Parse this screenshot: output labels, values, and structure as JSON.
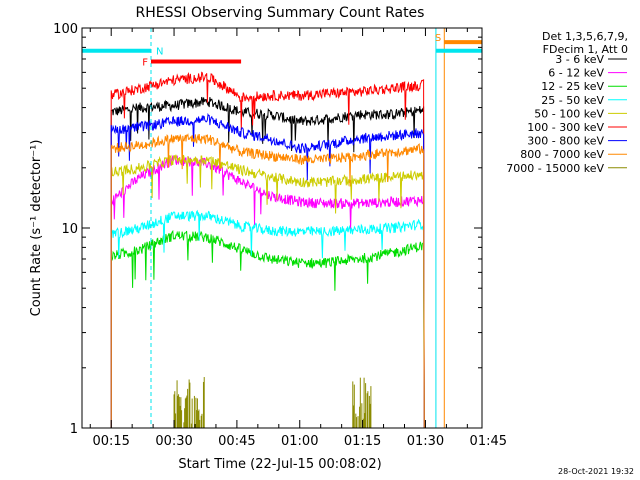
{
  "chart_data": {
    "type": "line",
    "title": "RHESSI Observing Summary Count Rates",
    "xlabel": "Start Time (22-Jul-15 00:08:02)",
    "ylabel": "Count Rate (s⁻¹ detector⁻¹)",
    "y_scale": "log",
    "ylim": [
      1,
      100
    ],
    "xlim_minutes": [
      8.03,
      103.5
    ],
    "x_tick_labels": [
      "00:15",
      "00:30",
      "00:45",
      "01:00",
      "01:15",
      "01:30",
      "01:45"
    ],
    "x_tick_minutes": [
      15,
      30,
      45,
      60,
      75,
      90,
      105
    ],
    "y_tick_labels": [
      "1",
      "10",
      "100"
    ],
    "y_tick_values": [
      1,
      10,
      100
    ],
    "legend_header": [
      "Det 1,3,5,6,7,9,",
      "FDecim 1, Att 0"
    ],
    "timestamp": "28-Oct-2021 19:32",
    "data_start_minutes": 15,
    "data_end_minutes": 89.7,
    "series": [
      {
        "name": "3 - 6 keV",
        "color": "#000000",
        "x": [
          15,
          22,
          30,
          38,
          46,
          53,
          60,
          66,
          74,
          82,
          89.7
        ],
        "values": [
          38,
          40,
          41,
          43,
          38,
          37,
          34,
          35,
          37,
          37,
          39
        ]
      },
      {
        "name": "6 - 12 keV",
        "color": "#ff00ff",
        "x": [
          15,
          22,
          30,
          38,
          46,
          53,
          60,
          66,
          74,
          82,
          89.7
        ],
        "values": [
          13.5,
          18,
          22,
          21,
          17,
          14.5,
          13.5,
          13.3,
          13.3,
          13.5,
          13.8
        ]
      },
      {
        "name": "12 - 25 keV",
        "color": "#00dd00",
        "x": [
          15,
          22,
          30,
          38,
          46,
          53,
          60,
          66,
          74,
          82,
          89.7
        ],
        "values": [
          7.2,
          7.8,
          9.2,
          9,
          7.8,
          7,
          6.7,
          6.7,
          7,
          7.5,
          8.2
        ]
      },
      {
        "name": "25 - 50 keV",
        "color": "#00ffff",
        "x": [
          15,
          22,
          30,
          38,
          46,
          53,
          60,
          66,
          74,
          82,
          89.7
        ],
        "values": [
          9.3,
          10,
          11.5,
          11.5,
          10.2,
          9.7,
          9.6,
          9.6,
          9.8,
          10,
          10.5
        ]
      },
      {
        "name": "50 - 100 keV",
        "color": "#cccc00",
        "x": [
          15,
          22,
          30,
          38,
          46,
          53,
          60,
          66,
          74,
          82,
          89.7
        ],
        "values": [
          19,
          20,
          22,
          22,
          19.5,
          18,
          17,
          17,
          17.5,
          18,
          18.5
        ]
      },
      {
        "name": "100 - 300 keV",
        "color": "#ff0000",
        "x": [
          15,
          22,
          30,
          38,
          46,
          53,
          60,
          66,
          74,
          82,
          89.7
        ],
        "values": [
          46,
          50,
          55,
          57,
          45,
          46,
          46,
          47,
          48,
          50,
          52
        ]
      },
      {
        "name": "300 - 800 keV",
        "color": "#0000ff",
        "x": [
          15,
          22,
          30,
          38,
          46,
          53,
          60,
          66,
          74,
          82,
          89.7
        ],
        "values": [
          31,
          32,
          34,
          35,
          30,
          28,
          25,
          26,
          28,
          29,
          30
        ]
      },
      {
        "name": "800 - 7000 keV",
        "color": "#ff8800",
        "x": [
          15,
          22,
          30,
          38,
          46,
          53,
          60,
          66,
          74,
          82,
          89.7
        ],
        "values": [
          25,
          26,
          28,
          28,
          24,
          23,
          22,
          22,
          23,
          24,
          25
        ]
      },
      {
        "name": "7000 - 15000 keV",
        "color": "#8b8b00",
        "x": [
          30,
          31,
          33,
          35,
          37,
          73,
          74,
          75,
          77
        ],
        "values": [
          1.6,
          1.3,
          1.8,
          1.2,
          1.6,
          1.5,
          1.8,
          1.3,
          1.6
        ]
      }
    ],
    "annotations": [
      {
        "text": "N",
        "color": "#00e5ee",
        "kind": "night",
        "x_minutes": [
          8.03,
          24.5
        ],
        "y": 77
      },
      {
        "text": "F",
        "color": "#ff0000",
        "kind": "flare",
        "x_minutes": [
          24.5,
          46
        ],
        "y": 68
      },
      {
        "text": "S",
        "color": "#ff8800",
        "kind": "saa",
        "x_minutes": [
          94.5,
          103.5
        ],
        "y": 85
      },
      {
        "text": "",
        "color": "#00e5ee",
        "kind": "night",
        "x_minutes": [
          92.5,
          103.5
        ],
        "y": 77
      }
    ],
    "vertical_markers": [
      {
        "x_minutes": 8.03,
        "color": "#00e5ee",
        "style": "solid"
      },
      {
        "x_minutes": 24.5,
        "color": "#00e5ee",
        "style": "dashed"
      },
      {
        "x_minutes": 92.5,
        "color": "#00e5ee",
        "style": "solid"
      },
      {
        "x_minutes": 94.5,
        "color": "#ff8800",
        "style": "solid"
      },
      {
        "x_minutes": 103.5,
        "color": "#00e5ee",
        "style": "dashed"
      }
    ]
  }
}
